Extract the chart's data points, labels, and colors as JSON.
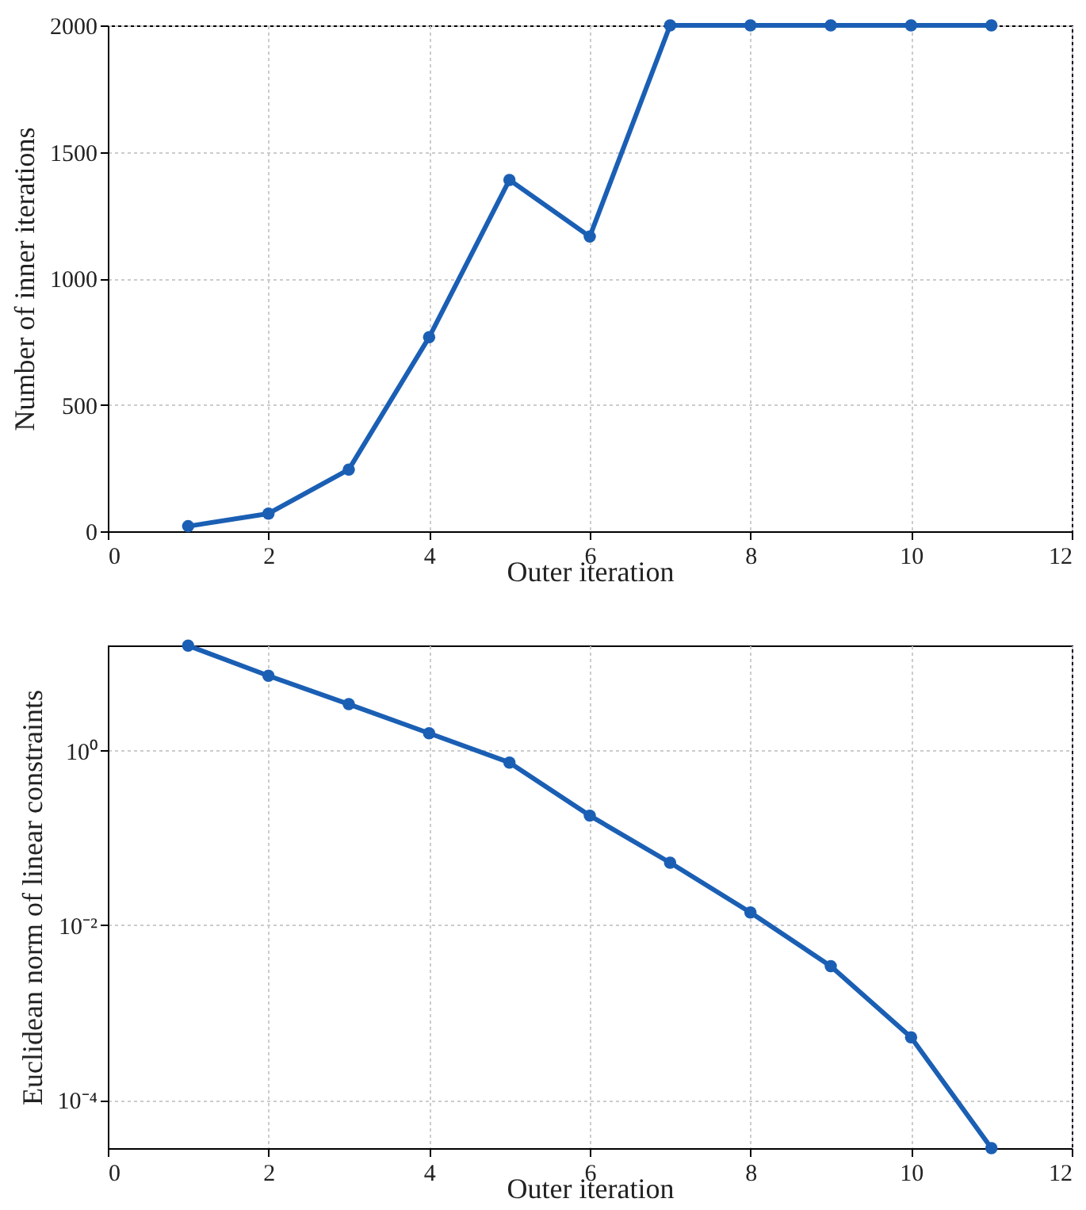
{
  "chart_data": [
    {
      "type": "line",
      "xlabel": "Outer iteration",
      "ylabel": "Number of inner iterations",
      "x": [
        1,
        2,
        3,
        4,
        5,
        6,
        7,
        8,
        9,
        10,
        11
      ],
      "series": [
        {
          "color": "#1a5fb4",
          "values": [
            20,
            70,
            244,
            767,
            1389,
            1165,
            2000,
            2000,
            2000,
            2000,
            2000
          ]
        }
      ],
      "xlim": [
        0,
        12
      ],
      "xticks": [
        0,
        2,
        4,
        6,
        8,
        10,
        12
      ],
      "ylim": [
        0,
        2000
      ],
      "yticks": [
        0,
        500,
        1000,
        1500,
        2000
      ],
      "grid": true,
      "marker": "circle",
      "line_style": "solid"
    },
    {
      "type": "line",
      "xlabel": "Outer iteration",
      "ylabel": "Euclidean norm of linear constraints",
      "x": [
        1,
        2,
        3,
        4,
        5,
        6,
        7,
        8,
        9,
        10,
        11
      ],
      "series": [
        {
          "color": "#1a5fb4",
          "values": [
            15.9,
            7.2,
            3.4,
            1.58,
            0.73,
            0.18,
            0.052,
            0.014,
            0.0034,
            0.00052,
            2.8e-05
          ]
        }
      ],
      "xlim": [
        0,
        12
      ],
      "xticks": [
        0,
        2,
        4,
        6,
        8,
        10,
        12
      ],
      "ylim": [
        2.8e-05,
        16
      ],
      "yticks": [
        {
          "value": 1,
          "label": "10⁰"
        },
        {
          "value": 0.01,
          "label": "10⁻²"
        },
        {
          "value": 0.0001,
          "label": "10⁻⁴"
        }
      ],
      "log": "y",
      "grid": true,
      "marker": "circle",
      "line_style": "solid"
    }
  ]
}
